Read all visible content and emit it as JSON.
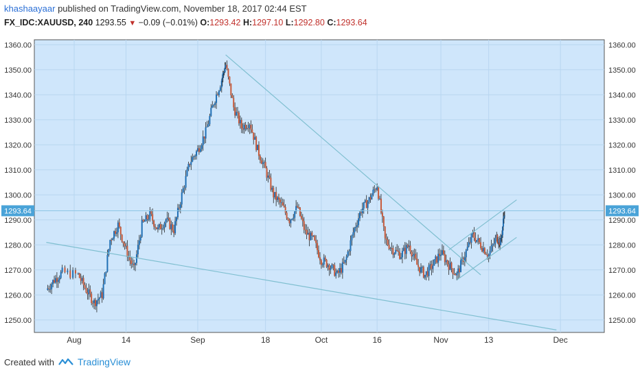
{
  "header": {
    "user": "khashaayaar",
    "published_text": "published on TradingView.com, November 18, 2017 02:44 EST",
    "symbol": "FX_IDC:XAUUSD, 240",
    "last": "1293.55",
    "change": "−0.09 (−0.01%)",
    "o_label": "O:",
    "o_value": "1293.42",
    "h_label": "H:",
    "h_value": "1297.10",
    "l_label": "L:",
    "l_value": "1292.80",
    "c_label": "C:",
    "c_value": "1293.64"
  },
  "footer": {
    "created_with": "Created with",
    "brand": "TradingView"
  },
  "colors": {
    "plot_bg": "#cfe6fb",
    "up": "#1f6fb5",
    "down": "#c85a3a",
    "line": "#7fbfd0",
    "price_tag": "#4aa3d8"
  },
  "chart_data": {
    "type": "candlestick",
    "title": "",
    "xlabel": "",
    "ylabel": "",
    "ylim": [
      1245,
      1362
    ],
    "y_ticks": [
      "1250.00",
      "1260.00",
      "1270.00",
      "1280.00",
      "1290.00",
      "1300.00",
      "1310.00",
      "1320.00",
      "1330.00",
      "1340.00",
      "1350.00",
      "1360.00"
    ],
    "x_ticks": [
      {
        "label": "Aug",
        "date": "2017-08-01"
      },
      {
        "label": "14",
        "date": "2017-08-14"
      },
      {
        "label": "Sep",
        "date": "2017-09-01"
      },
      {
        "label": "18",
        "date": "2017-09-18"
      },
      {
        "label": "Oct",
        "date": "2017-10-02"
      },
      {
        "label": "16",
        "date": "2017-10-16"
      },
      {
        "label": "Nov",
        "date": "2017-11-01"
      },
      {
        "label": "13",
        "date": "2017-11-13"
      },
      {
        "label": "Dec",
        "date": "2017-12-01"
      }
    ],
    "grid": true,
    "current_price": 1293.64,
    "current_price_label": "1293.64",
    "approx_close_series": [
      {
        "date": "2017-07-25",
        "close": 1262
      },
      {
        "date": "2017-07-27",
        "close": 1266
      },
      {
        "date": "2017-07-29",
        "close": 1269
      },
      {
        "date": "2017-08-02",
        "close": 1268
      },
      {
        "date": "2017-08-04",
        "close": 1262
      },
      {
        "date": "2017-08-06",
        "close": 1257
      },
      {
        "date": "2017-08-08",
        "close": 1260
      },
      {
        "date": "2017-08-10",
        "close": 1282
      },
      {
        "date": "2017-08-12",
        "close": 1288
      },
      {
        "date": "2017-08-14",
        "close": 1278
      },
      {
        "date": "2017-08-16",
        "close": 1270
      },
      {
        "date": "2017-08-18",
        "close": 1288
      },
      {
        "date": "2017-08-20",
        "close": 1292
      },
      {
        "date": "2017-08-22",
        "close": 1286
      },
      {
        "date": "2017-08-24",
        "close": 1290
      },
      {
        "date": "2017-08-26",
        "close": 1286
      },
      {
        "date": "2017-08-28",
        "close": 1300
      },
      {
        "date": "2017-08-30",
        "close": 1313
      },
      {
        "date": "2017-09-01",
        "close": 1318
      },
      {
        "date": "2017-09-03",
        "close": 1325
      },
      {
        "date": "2017-09-05",
        "close": 1337
      },
      {
        "date": "2017-09-07",
        "close": 1346
      },
      {
        "date": "2017-09-08",
        "close": 1352
      },
      {
        "date": "2017-09-10",
        "close": 1335
      },
      {
        "date": "2017-09-12",
        "close": 1327
      },
      {
        "date": "2017-09-14",
        "close": 1329
      },
      {
        "date": "2017-09-16",
        "close": 1318
      },
      {
        "date": "2017-09-18",
        "close": 1310
      },
      {
        "date": "2017-09-20",
        "close": 1300
      },
      {
        "date": "2017-09-22",
        "close": 1296
      },
      {
        "date": "2017-09-24",
        "close": 1290
      },
      {
        "date": "2017-09-26",
        "close": 1295
      },
      {
        "date": "2017-09-28",
        "close": 1285
      },
      {
        "date": "2017-09-30",
        "close": 1282
      },
      {
        "date": "2017-10-02",
        "close": 1274
      },
      {
        "date": "2017-10-04",
        "close": 1272
      },
      {
        "date": "2017-10-06",
        "close": 1268
      },
      {
        "date": "2017-10-08",
        "close": 1273
      },
      {
        "date": "2017-10-10",
        "close": 1285
      },
      {
        "date": "2017-10-12",
        "close": 1294
      },
      {
        "date": "2017-10-14",
        "close": 1298
      },
      {
        "date": "2017-10-16",
        "close": 1304
      },
      {
        "date": "2017-10-18",
        "close": 1282
      },
      {
        "date": "2017-10-20",
        "close": 1278
      },
      {
        "date": "2017-10-22",
        "close": 1276
      },
      {
        "date": "2017-10-24",
        "close": 1280
      },
      {
        "date": "2017-10-26",
        "close": 1272
      },
      {
        "date": "2017-10-28",
        "close": 1268
      },
      {
        "date": "2017-10-30",
        "close": 1272
      },
      {
        "date": "2017-11-01",
        "close": 1277
      },
      {
        "date": "2017-11-03",
        "close": 1272
      },
      {
        "date": "2017-11-05",
        "close": 1268
      },
      {
        "date": "2017-11-07",
        "close": 1276
      },
      {
        "date": "2017-11-09",
        "close": 1284
      },
      {
        "date": "2017-11-11",
        "close": 1280
      },
      {
        "date": "2017-11-13",
        "close": 1276
      },
      {
        "date": "2017-11-15",
        "close": 1283
      },
      {
        "date": "2017-11-16",
        "close": 1281
      },
      {
        "date": "2017-11-17",
        "close": 1293.64
      }
    ],
    "trendlines": [
      {
        "name": "upper-downtrend",
        "from": {
          "date": "2017-09-08",
          "price": 1356
        },
        "to": {
          "date": "2017-11-11",
          "price": 1268
        }
      },
      {
        "name": "lower-support",
        "from": {
          "date": "2017-07-25",
          "price": 1281
        },
        "to": {
          "date": "2017-11-30",
          "price": 1246
        }
      },
      {
        "name": "channel-upper",
        "from": {
          "date": "2017-11-03",
          "price": 1278
        },
        "to": {
          "date": "2017-11-20",
          "price": 1298
        }
      },
      {
        "name": "channel-lower",
        "from": {
          "date": "2017-11-05",
          "price": 1266
        },
        "to": {
          "date": "2017-11-20",
          "price": 1283
        }
      }
    ]
  }
}
